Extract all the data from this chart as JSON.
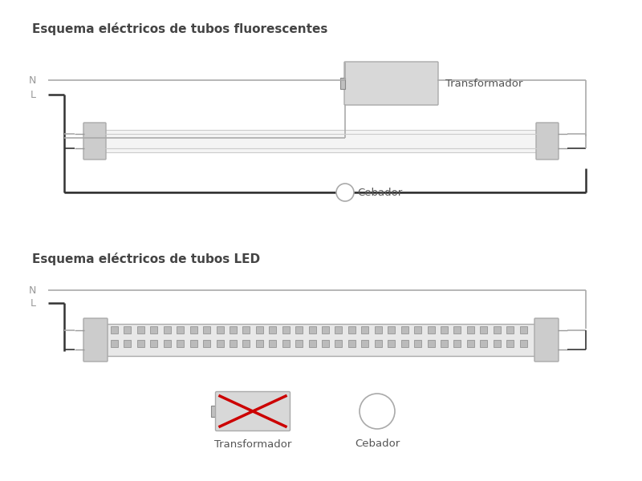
{
  "title1": "Esquema eléctricos de tubos fluorescentes",
  "title2": "Esquema eléctricos de tubos LED",
  "label_N": "N",
  "label_L": "L",
  "label_transformador": "Transformador",
  "label_cebador": "Cebador",
  "bg_color": "#ffffff",
  "wire_color_gray": "#aaaaaa",
  "wire_color_black": "#333333",
  "tube_end_color": "#cccccc",
  "transformer_color": "#d8d8d8",
  "red_cross_color": "#cc0000",
  "title_fontsize": 11,
  "label_fontsize": 9.5
}
